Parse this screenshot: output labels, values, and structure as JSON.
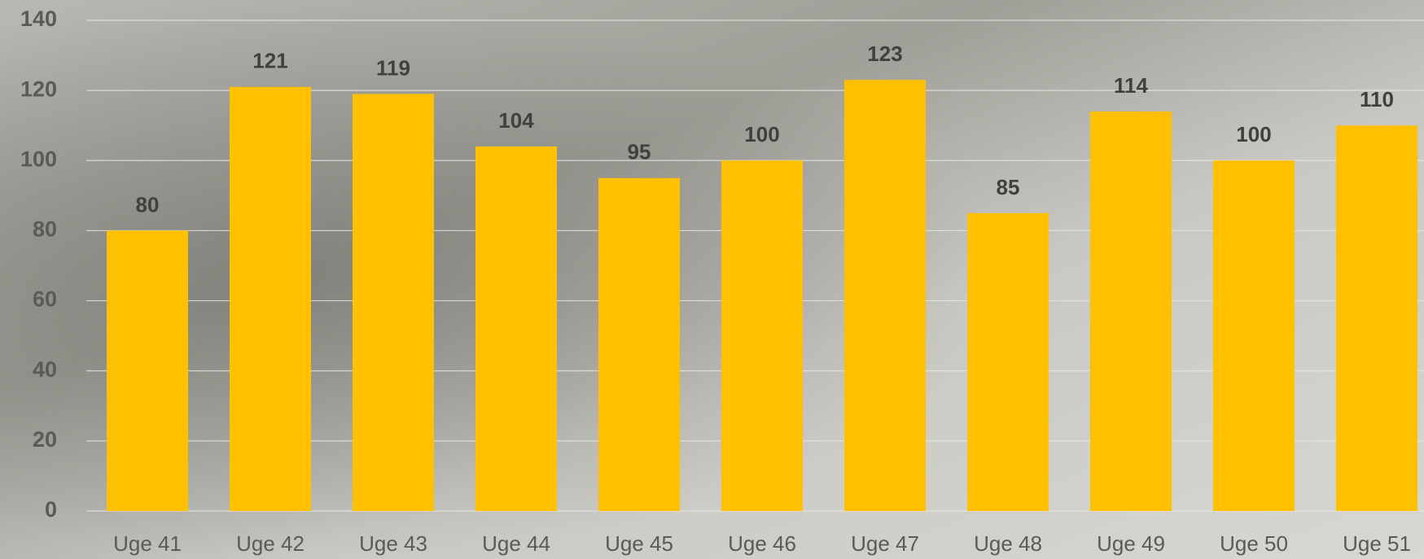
{
  "chart_data": {
    "type": "bar",
    "categories": [
      "Uge 41",
      "Uge 42",
      "Uge 43",
      "Uge 44",
      "Uge 45",
      "Uge 46",
      "Uge 47",
      "Uge 48",
      "Uge 49",
      "Uge 50",
      "Uge 51"
    ],
    "values": [
      80,
      121,
      119,
      104,
      95,
      100,
      123,
      85,
      114,
      100,
      110
    ],
    "color": "#ffc000",
    "ylim": [
      0,
      140
    ],
    "yticks": [
      0,
      20,
      40,
      60,
      80,
      100,
      120,
      140
    ],
    "grid": true
  }
}
